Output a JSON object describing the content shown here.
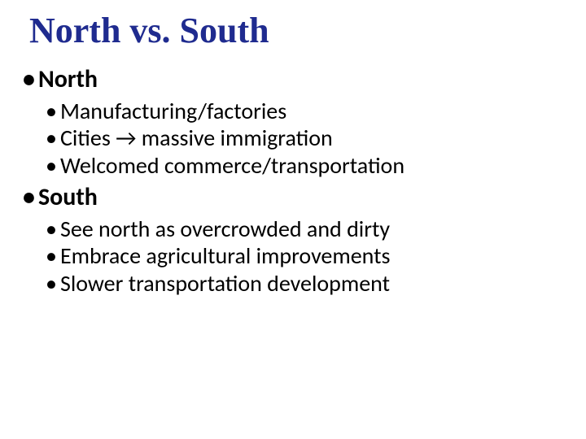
{
  "slide": {
    "title": "North vs. South",
    "title_color": "#1f2b8f",
    "title_fontsize": 44,
    "title_font": "Times New Roman",
    "body_font": "Calibri",
    "background_color": "#ffffff",
    "sections": [
      {
        "heading": "North",
        "heading_fontsize": 30,
        "heading_weight": "bold",
        "items": [
          "Manufacturing/factories",
          "Cities → massive immigration",
          "Welcomed commerce/transportation"
        ],
        "item_fontsize": 28
      },
      {
        "heading": "South",
        "heading_fontsize": 30,
        "heading_weight": "bold",
        "items": [
          "See north as overcrowded and dirty",
          "Embrace agricultural improvements",
          "Slower transportation development"
        ],
        "item_fontsize": 28
      }
    ],
    "bullet_char": "•",
    "arrow_char": "→"
  }
}
